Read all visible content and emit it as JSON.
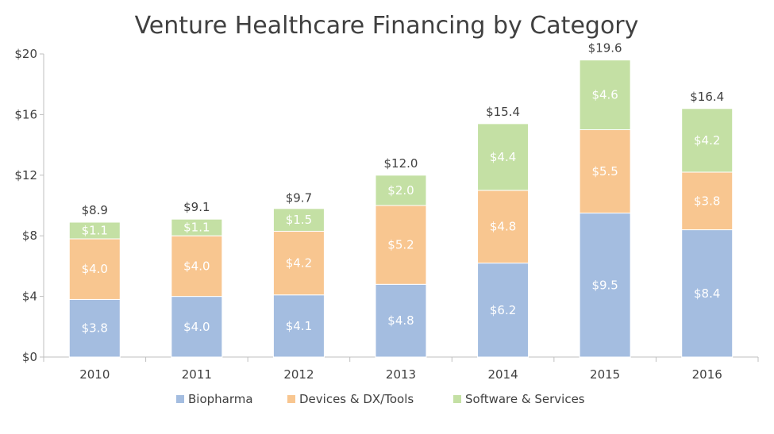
{
  "chart_data": {
    "type": "bar",
    "stacked": true,
    "title": "Venture Healthcare Financing by Category",
    "xlabel": "",
    "ylabel": "",
    "categories": [
      "2010",
      "2011",
      "2012",
      "2013",
      "2014",
      "2015",
      "2016"
    ],
    "y_ticks": [
      "$0",
      "$4",
      "$8",
      "$12",
      "$16",
      "$20"
    ],
    "ylim": [
      0,
      20
    ],
    "grid": false,
    "legend_position": "bottom",
    "series": [
      {
        "name": "Biopharma",
        "color": "#a4bde0",
        "values": [
          3.8,
          4.0,
          4.1,
          4.8,
          6.2,
          9.5,
          8.4
        ],
        "labels": [
          "$3.8",
          "$4.0",
          "$4.1",
          "$4.8",
          "$6.2",
          "$9.5",
          "$8.4"
        ]
      },
      {
        "name": "Devices & DX/Tools",
        "color": "#f8c690",
        "values": [
          4.0,
          4.0,
          4.2,
          5.2,
          4.8,
          5.5,
          3.8
        ],
        "labels": [
          "$4.0",
          "$4.0",
          "$4.2",
          "$5.2",
          "$4.8",
          "$5.5",
          "$3.8"
        ]
      },
      {
        "name": "Software & Services",
        "color": "#c4e0a4",
        "values": [
          1.1,
          1.1,
          1.5,
          2.0,
          4.4,
          4.6,
          4.2
        ],
        "labels": [
          "$1.1",
          "$1.1",
          "$1.5",
          "$2.0",
          "$4.4",
          "$4.6",
          "$4.2"
        ]
      }
    ],
    "totals": [
      8.9,
      9.1,
      9.7,
      12.0,
      15.4,
      19.6,
      16.4
    ],
    "total_labels": [
      "$8.9",
      "$9.1",
      "$9.7",
      "$12.0",
      "$15.4",
      "$19.6",
      "$16.4"
    ]
  }
}
